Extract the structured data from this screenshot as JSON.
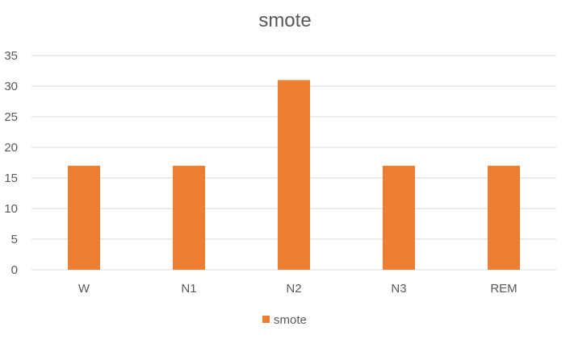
{
  "chart_data": {
    "type": "bar",
    "title": "smote",
    "categories": [
      "W",
      "N1",
      "N2",
      "N3",
      "REM"
    ],
    "series": [
      {
        "name": "smote",
        "values": [
          17,
          17,
          31,
          17,
          17
        ],
        "color": "#ED7D31"
      }
    ],
    "ylim": [
      0,
      35
    ],
    "yticks": [
      0,
      5,
      10,
      15,
      20,
      25,
      30,
      35
    ],
    "xlabel": "",
    "ylabel": "",
    "grid": true,
    "legend_position": "bottom",
    "gridline_color": "#d9d9d9",
    "text_color": "#595959"
  }
}
